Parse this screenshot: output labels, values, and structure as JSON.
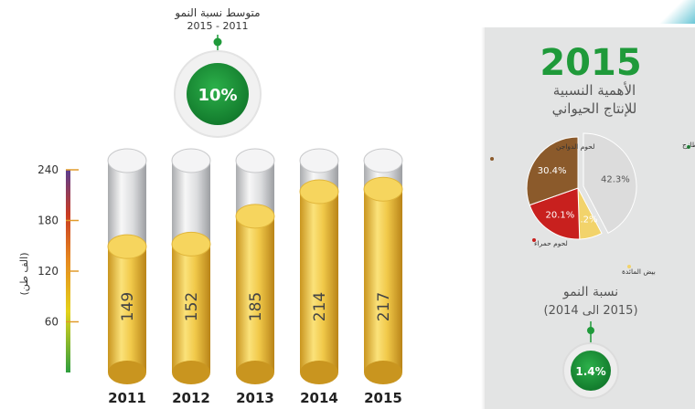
{
  "growth_note": {
    "title": "متوسط نسبة النمو",
    "period": "2015 - 2011",
    "value": "10%"
  },
  "chart_data": [
    {
      "type": "bar",
      "categories": [
        "2011",
        "2012",
        "2013",
        "2014",
        "2015"
      ],
      "values": [
        149,
        152,
        185,
        214,
        217
      ],
      "ylim": [
        0,
        240
      ],
      "yticks": [
        60,
        120,
        180,
        240
      ],
      "ylabel": "(الف طن)",
      "grid": false,
      "colors": {
        "fill": "#e2b637",
        "cap": "#d4d5d7",
        "axis_gradient": [
          "#2e9e3e",
          "#e4d21a",
          "#e68a1f",
          "#c93b23",
          "#5b3d8f"
        ]
      }
    },
    {
      "type": "pie",
      "year": "2015",
      "title_lines": [
        "الأهمية النسبية",
        "للإنتاج الحيواني"
      ],
      "slices": [
        {
          "label": "حليب طازج",
          "value": 42.3,
          "color": "#dcdcdc"
        },
        {
          "label": "بيض المائدة",
          "value": 7.2,
          "color": "#f2d36b"
        },
        {
          "label": "لحوم حمراء",
          "value": 20.1,
          "color": "#c8201e"
        },
        {
          "label": "لحوم الدواجن",
          "value": 30.4,
          "color": "#8b5a2b"
        }
      ]
    }
  ],
  "panel": {
    "growth_label": "نسبة النمو",
    "growth_period": "(2015 الى 2014)",
    "growth_value": "1.4%",
    "accent_color": "#1f9a3a"
  }
}
